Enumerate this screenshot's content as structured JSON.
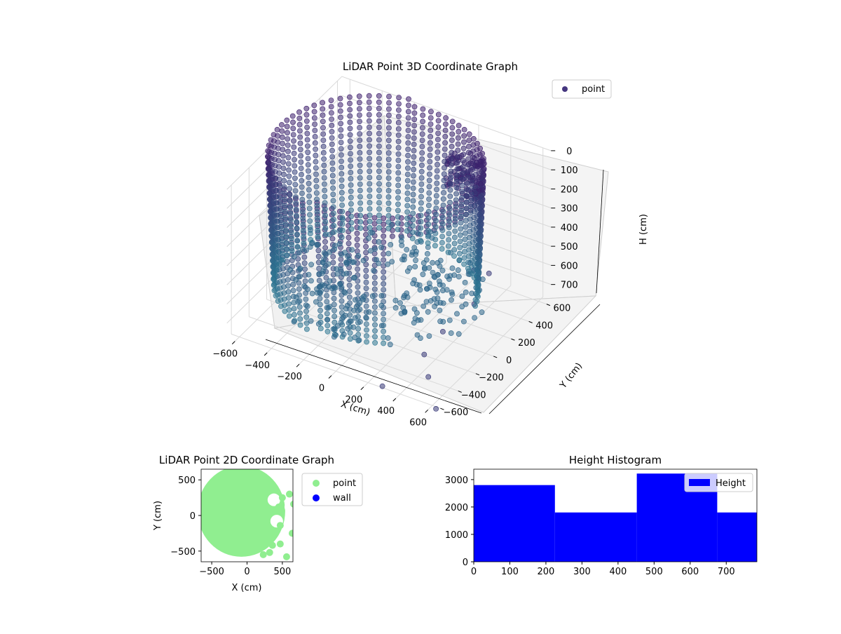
{
  "chart_data": [
    {
      "type": "scatter",
      "projection": "3d",
      "title": "LiDAR Point 3D Coordinate Graph",
      "xlabel": "X (cm)",
      "ylabel": "Y (cm)",
      "zlabel": "H (cm)",
      "xticks": [
        "−600",
        "−400",
        "−200",
        "0",
        "200",
        "400",
        "600"
      ],
      "yticks": [
        "−600",
        "−400",
        "−200",
        "0",
        "200",
        "400",
        "600"
      ],
      "zticks": [
        "0",
        "100",
        "200",
        "300",
        "400",
        "500",
        "600",
        "700"
      ],
      "xlim": [
        -650,
        650
      ],
      "ylim": [
        -650,
        650
      ],
      "zlim": [
        780,
        0
      ],
      "legend": {
        "label": "point",
        "color": "#45367f",
        "placement": "top-right"
      },
      "series_color_range": [
        "#3d1d6b",
        "#2a7892"
      ],
      "description_points": "dense cylindrical wall of points, radius about 500-650 cm, heights 0-700 cm, with an interior cluster and scattered outliers"
    },
    {
      "type": "scatter",
      "title": "LiDAR Point 2D Coordinate Graph",
      "xlabel": "X (cm)",
      "ylabel": "Y (cm)",
      "xticks": [
        "−500",
        "0",
        "500"
      ],
      "yticks": [
        "−500",
        "0",
        "500"
      ],
      "xlim": [
        -650,
        650
      ],
      "ylim": [
        -650,
        650
      ],
      "series": [
        {
          "name": "point",
          "color": "#90ee90"
        },
        {
          "name": "wall",
          "color": "#0000ff"
        }
      ],
      "legend_placement": "outside-right"
    },
    {
      "type": "bar",
      "subtype": "histogram",
      "title": "Height Histogram",
      "xticks": [
        "0",
        "100",
        "200",
        "300",
        "400",
        "500",
        "600",
        "700"
      ],
      "yticks": [
        "0",
        "1000",
        "2000",
        "3000"
      ],
      "xlim": [
        0,
        785
      ],
      "ylim": [
        0,
        3380
      ],
      "bins": [
        {
          "start": 0,
          "end": 225,
          "count": 2800
        },
        {
          "start": 225,
          "end": 452,
          "count": 1800
        },
        {
          "start": 452,
          "end": 675,
          "count": 3220
        },
        {
          "start": 675,
          "end": 785,
          "count": 1800
        }
      ],
      "series": [
        {
          "name": "Height",
          "color": "#0000ff"
        }
      ],
      "legend_placement": "top-right"
    }
  ]
}
